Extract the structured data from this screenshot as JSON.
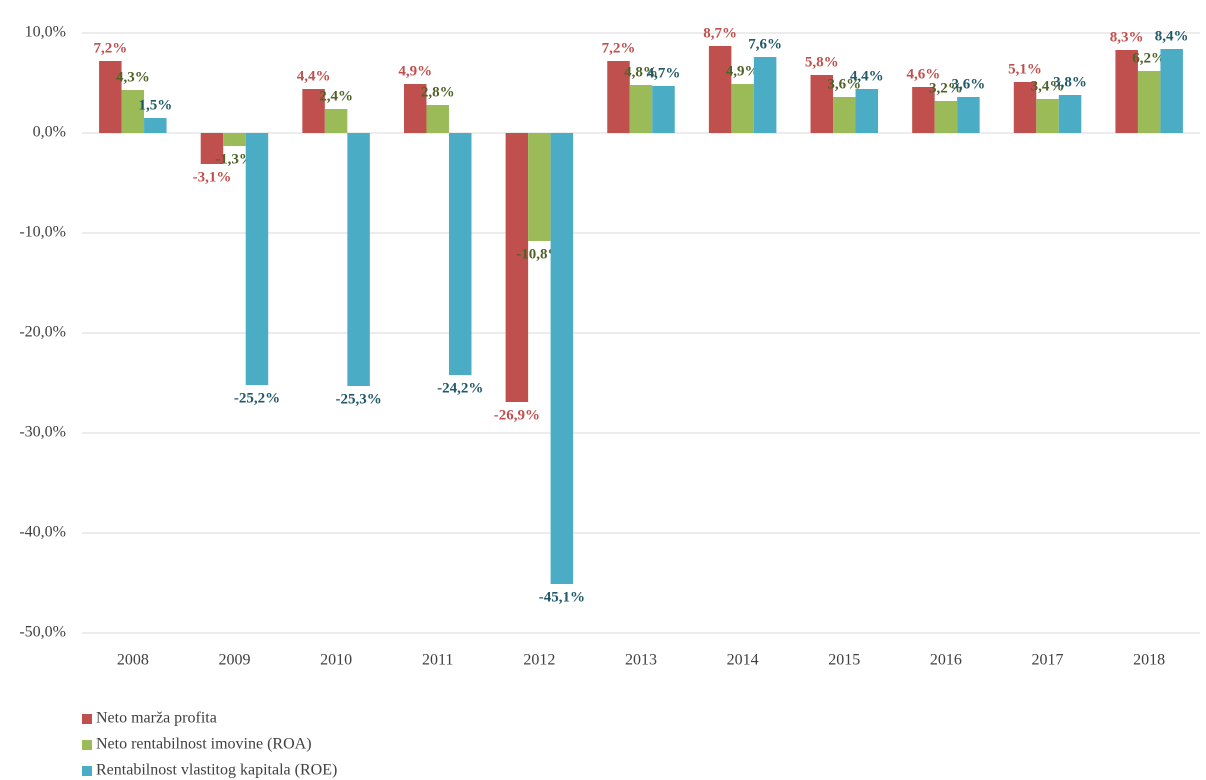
{
  "chart_data": {
    "type": "bar",
    "categories": [
      "2008",
      "2009",
      "2010",
      "2011",
      "2012",
      "2013",
      "2014",
      "2015",
      "2016",
      "2017",
      "2018"
    ],
    "series": [
      {
        "name": "Neto marža profita",
        "color": "#c0504d",
        "label_color": "#c0504d",
        "values": [
          7.2,
          -3.1,
          4.4,
          4.9,
          -26.9,
          7.2,
          8.7,
          5.8,
          4.6,
          5.1,
          8.3
        ],
        "value_labels": [
          "7,2%",
          "-3,1%",
          "4,4%",
          "4,9%",
          "-26,9%",
          "7,2%",
          "8,7%",
          "5,8%",
          "4,6%",
          "5,1%",
          "8,3%"
        ]
      },
      {
        "name": "Neto rentabilnost imovine (ROA)",
        "color": "#9bbb59",
        "label_color": "#4f6228",
        "values": [
          4.3,
          -1.3,
          2.4,
          2.8,
          -10.8,
          4.8,
          4.9,
          3.6,
          3.2,
          3.4,
          6.2
        ],
        "value_labels": [
          "4,3%",
          "-1,3%",
          "2,4%",
          "2,8%",
          "-10,8%",
          "4,8%",
          "4,9%",
          "3,6%",
          "3,2%",
          "3,4%",
          "6,2%"
        ]
      },
      {
        "name": "Rentabilnost vlastitog kapitala (ROE)",
        "color": "#4bacc6",
        "label_color": "#215968",
        "values": [
          1.5,
          -25.2,
          -25.3,
          -24.2,
          -45.1,
          4.7,
          7.6,
          4.4,
          3.6,
          3.8,
          8.4
        ],
        "value_labels": [
          "1,5%",
          "-25,2%",
          "-25,3%",
          "-24,2%",
          "-45,1%",
          "4,7%",
          "7,6%",
          "4,4%",
          "3,6%",
          "3,8%",
          "8,4%"
        ]
      }
    ],
    "ylim": [
      -50,
      10
    ],
    "yticks": [
      {
        "value": -50,
        "label": "-50,0%"
      },
      {
        "value": -40,
        "label": "-40,0%"
      },
      {
        "value": -30,
        "label": "-30,0%"
      },
      {
        "value": -20,
        "label": "-20,0%"
      },
      {
        "value": -10,
        "label": "-10,0%"
      },
      {
        "value": 0,
        "label": "0,0%"
      },
      {
        "value": 10,
        "label": "10,0%"
      }
    ],
    "grid": true,
    "legend": "bottom-left"
  }
}
